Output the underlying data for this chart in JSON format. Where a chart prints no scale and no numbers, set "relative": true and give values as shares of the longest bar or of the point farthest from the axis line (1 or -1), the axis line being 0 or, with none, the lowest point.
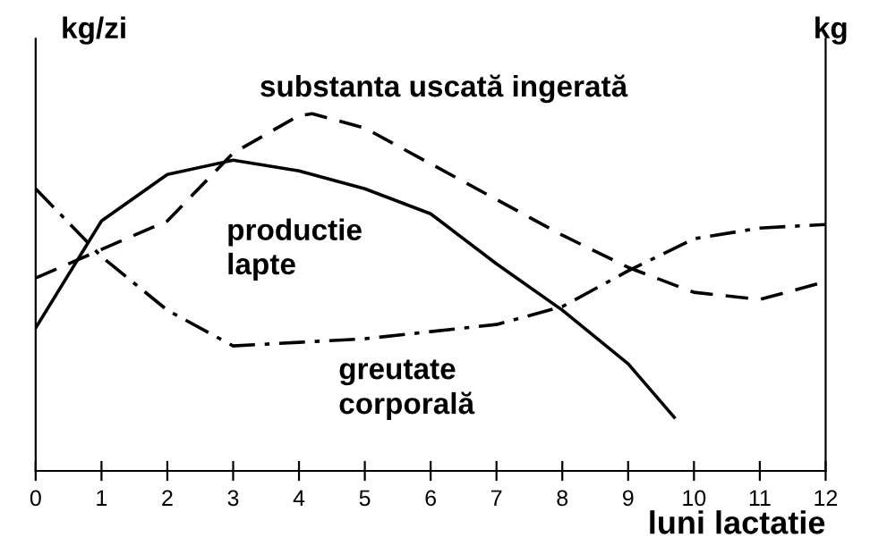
{
  "chart_data": {
    "type": "line",
    "relative": true,
    "xlabel": "luni lactatie",
    "ylabel": "kg/zi",
    "y2label": "kg",
    "xlim": [
      0,
      12
    ],
    "xticks": [
      0,
      1,
      2,
      3,
      4,
      5,
      6,
      7,
      8,
      9,
      10,
      11,
      12
    ],
    "grid": false,
    "legend": false,
    "marker": "none",
    "series": [
      {
        "name": "substanta uscată ingerată",
        "color": "#000000",
        "line_style": "dashed",
        "x": [
          0,
          1,
          2,
          3,
          4,
          4.2,
          5,
          6,
          7,
          8,
          9,
          10,
          11,
          12
        ],
        "values": [
          0.54,
          0.62,
          0.7,
          0.89,
          0.995,
          1,
          0.96,
          0.86,
          0.76,
          0.66,
          0.57,
          0.5,
          0.48,
          0.53
        ]
      },
      {
        "name": "productie\nlapte",
        "color": "#000000",
        "line_style": "solid",
        "x": [
          0,
          1,
          2,
          3,
          4,
          5,
          6,
          7,
          8,
          9,
          9.7
        ],
        "values": [
          0.4,
          0.7,
          0.83,
          0.87,
          0.84,
          0.79,
          0.72,
          0.58,
          0.45,
          0.3,
          0.15
        ]
      },
      {
        "name": "greutate\ncorporală",
        "color": "#000000",
        "line_style": "dashdot",
        "x": [
          0,
          1,
          2,
          3,
          4,
          5,
          6,
          7,
          8,
          9,
          10,
          11,
          12
        ],
        "values": [
          0.79,
          0.6,
          0.45,
          0.35,
          0.36,
          0.37,
          0.39,
          0.41,
          0.46,
          0.56,
          0.65,
          0.68,
          0.69
        ]
      }
    ]
  }
}
